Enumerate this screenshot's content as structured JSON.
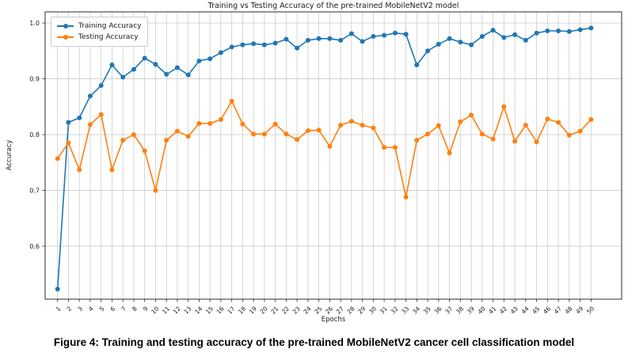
{
  "caption": {
    "text": "Figure 4: Training and testing accuracy of the pre-trained MobileNetV2 cancer cell classification model"
  },
  "chart_data": {
    "type": "line",
    "title": "Training vs Testing Accuracy of the pre-trained MobileNetV2 model",
    "xlabel": "Epochs",
    "ylabel": "Accuracy",
    "x": [
      1,
      2,
      3,
      4,
      5,
      6,
      7,
      8,
      9,
      10,
      11,
      12,
      13,
      14,
      15,
      16,
      17,
      18,
      19,
      20,
      21,
      22,
      23,
      24,
      25,
      26,
      27,
      28,
      29,
      30,
      31,
      32,
      33,
      34,
      35,
      36,
      37,
      38,
      39,
      40,
      41,
      42,
      43,
      44,
      45,
      46,
      47,
      48,
      49,
      50
    ],
    "series": [
      {
        "name": "Training Accuracy",
        "color": "#1f77b4",
        "values": [
          0.523,
          0.822,
          0.83,
          0.869,
          0.888,
          0.925,
          0.903,
          0.917,
          0.937,
          0.926,
          0.908,
          0.92,
          0.907,
          0.932,
          0.936,
          0.947,
          0.957,
          0.961,
          0.963,
          0.961,
          0.964,
          0.971,
          0.955,
          0.969,
          0.972,
          0.972,
          0.969,
          0.981,
          0.967,
          0.976,
          0.978,
          0.982,
          0.98,
          0.925,
          0.95,
          0.962,
          0.972,
          0.966,
          0.961,
          0.976,
          0.987,
          0.974,
          0.979,
          0.969,
          0.982,
          0.986,
          0.986,
          0.985,
          0.988,
          0.991
        ]
      },
      {
        "name": "Testing Accuracy",
        "color": "#ff7f0e",
        "values": [
          0.757,
          0.785,
          0.737,
          0.818,
          0.836,
          0.737,
          0.79,
          0.8,
          0.771,
          0.7,
          0.79,
          0.806,
          0.797,
          0.82,
          0.82,
          0.827,
          0.86,
          0.819,
          0.801,
          0.801,
          0.819,
          0.801,
          0.791,
          0.807,
          0.808,
          0.779,
          0.817,
          0.824,
          0.817,
          0.812,
          0.777,
          0.777,
          0.688,
          0.79,
          0.801,
          0.816,
          0.767,
          0.823,
          0.835,
          0.801,
          0.792,
          0.85,
          0.788,
          0.817,
          0.787,
          0.828,
          0.822,
          0.799,
          0.806,
          0.827
        ]
      }
    ],
    "ylim": [
      0.505,
      1.02
    ],
    "yticks": [
      "1.0",
      "0.9",
      "0.8",
      "0.7",
      "0.6"
    ],
    "grid": true,
    "legend_position": "upper left",
    "grid_color": "#cccccc",
    "spine_color": "#2b2b2b",
    "text_color": "#1a1a1a"
  }
}
